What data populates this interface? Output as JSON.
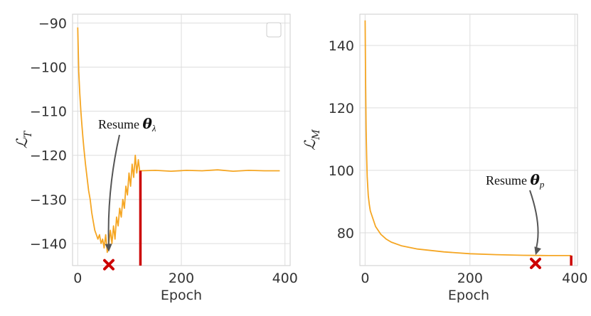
{
  "chart_data": [
    {
      "type": "line",
      "xlabel": "Epoch",
      "ylabel": "ℒ",
      "ylabel_sub": "T",
      "xlim": [
        -10,
        410
      ],
      "ylim": [
        -145,
        -88
      ],
      "xticks": [
        0,
        200,
        400
      ],
      "yticks": [
        -90,
        -100,
        -110,
        -120,
        -130,
        -140
      ],
      "grid": true,
      "legend": "empty box top-right",
      "color": "#f5a623",
      "series": [
        {
          "x": [
            0,
            2,
            4,
            6,
            8,
            10,
            12,
            15,
            18,
            21,
            24,
            27,
            30,
            33,
            36,
            39,
            42,
            45,
            48,
            51,
            54,
            57,
            60,
            63,
            66,
            69,
            72,
            75,
            78,
            81,
            84,
            87,
            90,
            93,
            96,
            99,
            102,
            105,
            108,
            111,
            114,
            117,
            120,
            121,
            150,
            180,
            210,
            240,
            270,
            300,
            330,
            360,
            390
          ],
          "y": [
            -91,
            -101,
            -106,
            -110,
            -113,
            -116,
            -118.5,
            -122,
            -125,
            -128,
            -130,
            -133,
            -135,
            -137,
            -138,
            -139,
            -138,
            -140,
            -139,
            -141,
            -138,
            -142,
            -140,
            -137,
            -140,
            -136,
            -139,
            -134,
            -136,
            -132,
            -134,
            -130,
            -132,
            -127,
            -129,
            -124,
            -127,
            -122,
            -125,
            -120,
            -124,
            -121,
            -124,
            -123.5,
            -123.4,
            -123.6,
            -123.4,
            -123.5,
            -123.3,
            -123.6,
            -123.4,
            -123.5,
            -123.5
          ]
        }
      ],
      "vline": {
        "x": 121,
        "y_from": -123.5,
        "y_to": -145,
        "color": "#cc0000"
      },
      "marker": {
        "x": 60,
        "y": -144.8,
        "shape": "x",
        "color": "#cc0000"
      },
      "annotation": {
        "text": "Resume ",
        "symbol": "θ",
        "sub": "λ",
        "arrow_to_x": 60,
        "arrow_to_y": -142.2
      }
    },
    {
      "type": "line",
      "xlabel": "Epoch",
      "ylabel": "ℒ",
      "ylabel_sub": "M",
      "xlim": [
        -10,
        405
      ],
      "ylim": [
        69.5,
        150
      ],
      "xticks": [
        0,
        200,
        400
      ],
      "yticks": [
        140,
        120,
        100,
        80
      ],
      "grid": true,
      "color": "#f5a623",
      "series": [
        {
          "x": [
            0,
            1,
            2,
            3,
            4,
            6,
            8,
            10,
            15,
            20,
            30,
            40,
            50,
            70,
            100,
            150,
            200,
            250,
            300,
            350,
            393
          ],
          "y": [
            148,
            128,
            113,
            104,
            98,
            92,
            89,
            87,
            84.5,
            82,
            79.5,
            78,
            77,
            75.8,
            74.8,
            73.9,
            73.3,
            73.0,
            72.8,
            72.7,
            72.7
          ]
        }
      ],
      "vline": {
        "x": 393,
        "y_from": 72.7,
        "y_to": 69.5,
        "color": "#cc0000"
      },
      "marker": {
        "x": 325,
        "y": 70.2,
        "shape": "x",
        "color": "#cc0000"
      },
      "annotation": {
        "text": "Resume ",
        "symbol": "θ",
        "sub": "p",
        "arrow_to_x": 325,
        "arrow_to_y": 72.4
      }
    }
  ]
}
